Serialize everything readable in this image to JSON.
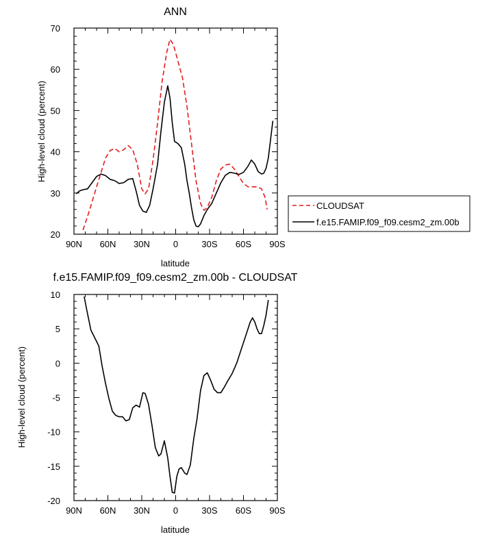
{
  "chart_data": [
    {
      "type": "line",
      "title": "ANN",
      "xlabel": "latitude",
      "ylabel": "High-level cloud (percent)",
      "xlim": [
        -90,
        90
      ],
      "ylim": [
        20,
        70
      ],
      "x_ticks": [
        -90,
        -60,
        -30,
        0,
        30,
        60,
        90
      ],
      "x_tick_labels": [
        "90N",
        "60N",
        "30N",
        "0",
        "30S",
        "60S",
        "90S"
      ],
      "y_ticks": [
        20,
        30,
        40,
        50,
        60,
        70
      ],
      "y_tick_labels": [
        "20",
        "30",
        "40",
        "50",
        "60",
        "70"
      ],
      "legend_position": "right",
      "series": [
        {
          "name": "CLOUDSAT",
          "color": "#e41a1c",
          "dash": "dashed",
          "points": [
            [
              -82,
              21
            ],
            [
              -76,
              26
            ],
            [
              -70,
              31.5
            ],
            [
              -66,
              35
            ],
            [
              -62,
              38.5
            ],
            [
              -58,
              40.3
            ],
            [
              -54,
              40.8
            ],
            [
              -50,
              40
            ],
            [
              -46,
              40.5
            ],
            [
              -42,
              41.5
            ],
            [
              -38,
              40.5
            ],
            [
              -34,
              37
            ],
            [
              -30,
              31
            ],
            [
              -27,
              29.8
            ],
            [
              -24,
              31
            ],
            [
              -20,
              38
            ],
            [
              -16,
              47
            ],
            [
              -12,
              57
            ],
            [
              -8,
              64
            ],
            [
              -5,
              67.3
            ],
            [
              -2,
              66
            ],
            [
              2,
              62
            ],
            [
              6,
              58
            ],
            [
              10,
              51
            ],
            [
              14,
              42
            ],
            [
              18,
              33
            ],
            [
              22,
              27.5
            ],
            [
              25,
              25.8
            ],
            [
              28,
              26.5
            ],
            [
              32,
              29
            ],
            [
              36,
              33
            ],
            [
              40,
              35.8
            ],
            [
              44,
              36.8
            ],
            [
              48,
              37
            ],
            [
              52,
              35.8
            ],
            [
              56,
              34
            ],
            [
              60,
              32.3
            ],
            [
              64,
              31.5
            ],
            [
              68,
              31.5
            ],
            [
              72,
              31.5
            ],
            [
              76,
              31
            ],
            [
              79,
              29
            ],
            [
              81,
              26
            ]
          ]
        },
        {
          "name": "f.e15.FAMIP.f09_f09.cesm2_zm.00b",
          "color": "#000000",
          "dash": "solid",
          "points": [
            [
              -88,
              29.8
            ],
            [
              -85,
              30.5
            ],
            [
              -82,
              30.8
            ],
            [
              -78,
              31
            ],
            [
              -74,
              32.5
            ],
            [
              -70,
              34
            ],
            [
              -66,
              34.6
            ],
            [
              -62,
              34.2
            ],
            [
              -58,
              33.3
            ],
            [
              -54,
              33
            ],
            [
              -50,
              32.3
            ],
            [
              -46,
              32.5
            ],
            [
              -42,
              33.3
            ],
            [
              -38,
              33.5
            ],
            [
              -35,
              30.5
            ],
            [
              -32,
              27
            ],
            [
              -29,
              25.6
            ],
            [
              -26,
              25.3
            ],
            [
              -23,
              27
            ],
            [
              -20,
              31
            ],
            [
              -16,
              37
            ],
            [
              -13,
              45
            ],
            [
              -10,
              52
            ],
            [
              -7,
              56
            ],
            [
              -5,
              53
            ],
            [
              -3,
              47
            ],
            [
              -1,
              42.5
            ],
            [
              2,
              42
            ],
            [
              5,
              41
            ],
            [
              8,
              37
            ],
            [
              10,
              33
            ],
            [
              12,
              30
            ],
            [
              14,
              26.5
            ],
            [
              16,
              23.5
            ],
            [
              18,
              22
            ],
            [
              20,
              21.8
            ],
            [
              22,
              22.5
            ],
            [
              25,
              24.5
            ],
            [
              28,
              26
            ],
            [
              32,
              27.5
            ],
            [
              36,
              30
            ],
            [
              40,
              32.5
            ],
            [
              44,
              34.3
            ],
            [
              48,
              35
            ],
            [
              52,
              34.8
            ],
            [
              56,
              34.5
            ],
            [
              60,
              35
            ],
            [
              64,
              36.5
            ],
            [
              67,
              38
            ],
            [
              70,
              37
            ],
            [
              73,
              35.2
            ],
            [
              76,
              34.6
            ],
            [
              78,
              34.8
            ],
            [
              80,
              36
            ],
            [
              82,
              38.5
            ],
            [
              84,
              43
            ],
            [
              86,
              47.5
            ]
          ]
        }
      ]
    },
    {
      "type": "line",
      "title": "f.e15.FAMIP.f09_f09.cesm2_zm.00b - CLOUDSAT",
      "xlabel": "latitude",
      "ylabel": "High-level cloud (percent)",
      "xlim": [
        -90,
        90
      ],
      "ylim": [
        -20,
        10
      ],
      "x_ticks": [
        -90,
        -60,
        -30,
        0,
        30,
        60,
        90
      ],
      "x_tick_labels": [
        "90N",
        "60N",
        "30N",
        "0",
        "30S",
        "60S",
        "90S"
      ],
      "y_ticks": [
        -20,
        -15,
        -10,
        -5,
        0,
        5,
        10
      ],
      "y_tick_labels": [
        "-20",
        "-15",
        "-10",
        "-5",
        "0",
        "5",
        "10"
      ],
      "series": [
        {
          "color": "#000000",
          "dash": "solid",
          "points": [
            [
              -81,
              9.7
            ],
            [
              -78,
              7.2
            ],
            [
              -75,
              4.8
            ],
            [
              -71,
              3.5
            ],
            [
              -68,
              2.5
            ],
            [
              -65,
              -0.5
            ],
            [
              -62,
              -3
            ],
            [
              -59,
              -5.2
            ],
            [
              -56,
              -7
            ],
            [
              -53,
              -7.6
            ],
            [
              -50,
              -7.8
            ],
            [
              -47,
              -7.8
            ],
            [
              -44,
              -8.4
            ],
            [
              -41,
              -8.2
            ],
            [
              -38,
              -6.5
            ],
            [
              -35,
              -6.1
            ],
            [
              -32,
              -6.4
            ],
            [
              -29,
              -4.3
            ],
            [
              -27,
              -4.4
            ],
            [
              -24,
              -6
            ],
            [
              -21,
              -9
            ],
            [
              -18,
              -12.3
            ],
            [
              -15,
              -13.5
            ],
            [
              -13,
              -13.2
            ],
            [
              -10,
              -11.3
            ],
            [
              -7,
              -13.8
            ],
            [
              -5,
              -16.5
            ],
            [
              -3,
              -18.8
            ],
            [
              -1,
              -18.9
            ],
            [
              1,
              -16.5
            ],
            [
              3,
              -15.4
            ],
            [
              5,
              -15.2
            ],
            [
              8,
              -16
            ],
            [
              10,
              -16.2
            ],
            [
              13,
              -14.8
            ],
            [
              16,
              -11
            ],
            [
              19,
              -8
            ],
            [
              22,
              -4
            ],
            [
              25,
              -1.8
            ],
            [
              28,
              -1.4
            ],
            [
              31,
              -2.5
            ],
            [
              34,
              -3.8
            ],
            [
              37,
              -4.3
            ],
            [
              40,
              -4.3
            ],
            [
              43,
              -3.5
            ],
            [
              46,
              -2.6
            ],
            [
              50,
              -1.5
            ],
            [
              54,
              0
            ],
            [
              58,
              2
            ],
            [
              62,
              4
            ],
            [
              66,
              6
            ],
            [
              68,
              6.6
            ],
            [
              70,
              6
            ],
            [
              72,
              5
            ],
            [
              74,
              4.3
            ],
            [
              76,
              4.3
            ],
            [
              78,
              5.5
            ],
            [
              80,
              7
            ],
            [
              82,
              9.2
            ]
          ]
        }
      ]
    }
  ]
}
